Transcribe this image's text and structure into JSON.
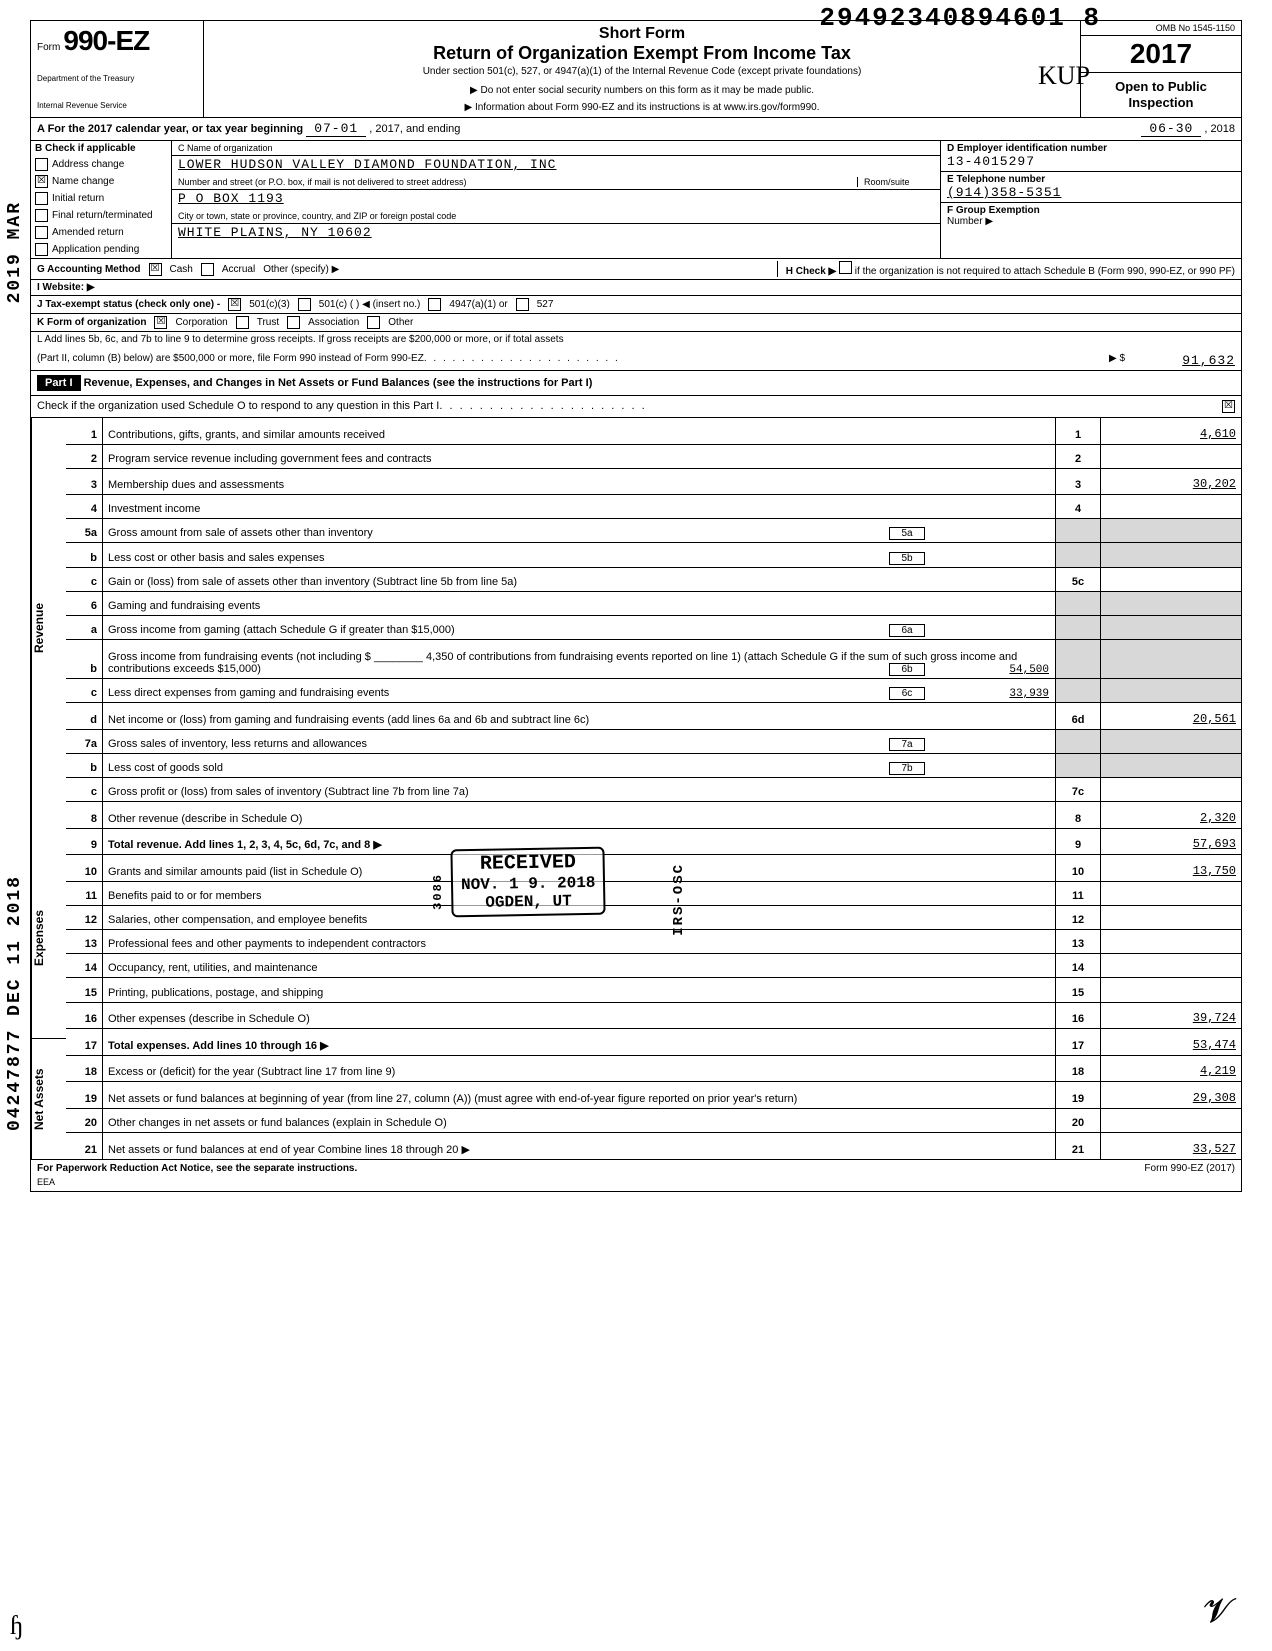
{
  "dln": "29492340894601  8",
  "header": {
    "form_label": "Form",
    "form_number": "990-EZ",
    "short_form": "Short Form",
    "title": "Return of Organization Exempt From Income Tax",
    "under_section": "Under section 501(c), 527, or 4947(a)(1) of the Internal Revenue Code (except private foundations)",
    "do_not_enter": "Do not enter social security numbers on this form as it may be made public.",
    "info_about": "Information about Form 990-EZ and its instructions is at www.irs.gov/form990.",
    "dept1": "Department of the Treasury",
    "dept2": "Internal Revenue Service",
    "omb": "OMB No 1545-1150",
    "year": "2017",
    "open_public": "Open to Public Inspection"
  },
  "row_A": {
    "label": "A  For the 2017 calendar year, or tax year beginning",
    "begin": "07-01",
    "mid": ", 2017, and ending",
    "end": "06-30",
    "end_year": ", 2018"
  },
  "B": {
    "header": "B  Check if applicable",
    "items": [
      {
        "label": "Address change",
        "checked": false
      },
      {
        "label": "Name change",
        "checked": true
      },
      {
        "label": "Initial return",
        "checked": false
      },
      {
        "label": "Final return/terminated",
        "checked": false
      },
      {
        "label": "Amended return",
        "checked": false
      },
      {
        "label": "Application pending",
        "checked": false
      }
    ]
  },
  "C": {
    "name_label": "C  Name of organization",
    "name": "LOWER HUDSON VALLEY DIAMOND FOUNDATION, INC",
    "street_label": "Number and street (or P.O. box, if mail is not delivered to street address)",
    "room_label": "Room/suite",
    "street": "P O BOX 1193",
    "city_label": "City or town, state or province, country, and ZIP or foreign postal code",
    "city": "WHITE PLAINS, NY 10602"
  },
  "D": {
    "label": "D  Employer identification number",
    "value": "13-4015297"
  },
  "E": {
    "label": "E  Telephone number",
    "value": "(914)358-5351"
  },
  "F": {
    "label": "F  Group Exemption",
    "label2": "Number  ▶"
  },
  "G": {
    "label": "G  Accounting Method",
    "cash": "Cash",
    "cash_checked": true,
    "accrual": "Accrual",
    "accrual_checked": false,
    "other": "Other (specify) ▶"
  },
  "H": {
    "label": "H  Check ▶",
    "text": "if the organization is not required to attach Schedule B (Form 990, 990-EZ, or 990 PF)"
  },
  "I": {
    "label": "I   Website:  ▶"
  },
  "J": {
    "label": "J  Tax-exempt status (check only one) -",
    "opts": [
      "501(c)(3)",
      "501(c) (    ) ◀ (insert no.)",
      "4947(a)(1) or",
      "527"
    ],
    "checked_index": 0
  },
  "K": {
    "label": "K  Form of organization",
    "opts": [
      "Corporation",
      "Trust",
      "Association",
      "Other"
    ],
    "checked_index": 0
  },
  "L": {
    "text1": "L  Add lines 5b, 6c, and 7b to line 9 to determine gross receipts. If gross receipts are $200,000 or more, or if total assets",
    "text2": "(Part II, column (B) below) are $500,000 or more, file Form 990 instead of Form 990-EZ",
    "arrow": "▶ $",
    "value": "91,632"
  },
  "partI": {
    "label": "Part I",
    "title": "Revenue, Expenses, and Changes in Net Assets or Fund Balances (see the instructions for Part I)",
    "check_line": "Check if the organization used Schedule O to respond to any question in this Part I",
    "check_val": "☒"
  },
  "sections": {
    "revenue": "Revenue",
    "expenses": "Expenses",
    "netassets": "Net Assets"
  },
  "lines": [
    {
      "n": "1",
      "t": "Contributions, gifts, grants, and similar amounts received",
      "box": "1",
      "amt": "4,610"
    },
    {
      "n": "2",
      "t": "Program service revenue including government fees and contracts",
      "box": "2",
      "amt": ""
    },
    {
      "n": "3",
      "t": "Membership dues and assessments",
      "box": "3",
      "amt": "30,202"
    },
    {
      "n": "4",
      "t": "Investment income",
      "box": "4",
      "amt": ""
    },
    {
      "n": "5a",
      "t": "Gross amount from sale of assets other than inventory",
      "ibox": "5a",
      "iamt": ""
    },
    {
      "n": "b",
      "t": "Less  cost or other basis and sales expenses",
      "ibox": "5b",
      "iamt": ""
    },
    {
      "n": "c",
      "t": "Gain or (loss) from sale of assets other than inventory (Subtract line 5b from line 5a)",
      "box": "5c",
      "amt": ""
    },
    {
      "n": "6",
      "t": "Gaming and fundraising events"
    },
    {
      "n": "a",
      "t": "Gross income from gaming (attach Schedule G if greater than $15,000)",
      "ibox": "6a",
      "iamt": ""
    },
    {
      "n": "b",
      "t": "Gross income from fundraising events (not including   $ ________ 4,350    of contributions from fundraising events reported on line 1) (attach Schedule G if the sum of such gross income and contributions exceeds $15,000)",
      "ibox": "6b",
      "iamt": "54,500"
    },
    {
      "n": "c",
      "t": "Less  direct expenses from gaming and fundraising events",
      "ibox": "6c",
      "iamt": "33,939"
    },
    {
      "n": "d",
      "t": "Net income or (loss) from gaming and fundraising events (add lines 6a and 6b and subtract line 6c)",
      "box": "6d",
      "amt": "20,561"
    },
    {
      "n": "7a",
      "t": "Gross sales of inventory, less returns and allowances",
      "ibox": "7a",
      "iamt": ""
    },
    {
      "n": "b",
      "t": "Less  cost of goods sold",
      "ibox": "7b",
      "iamt": ""
    },
    {
      "n": "c",
      "t": "Gross profit or (loss) from sales of inventory (Subtract line 7b from line 7a)",
      "box": "7c",
      "amt": ""
    },
    {
      "n": "8",
      "t": "Other revenue (describe in Schedule O)",
      "box": "8",
      "amt": "2,320"
    },
    {
      "n": "9",
      "t": "Total revenue. Add lines 1, 2, 3, 4, 5c, 6d, 7c, and 8",
      "box": "9",
      "amt": "57,693",
      "bold": true,
      "arrow": true
    },
    {
      "n": "10",
      "t": "Grants and similar amounts paid (list in Schedule O)",
      "box": "10",
      "amt": "13,750"
    },
    {
      "n": "11",
      "t": "Benefits paid to or for members",
      "box": "11",
      "amt": ""
    },
    {
      "n": "12",
      "t": "Salaries, other compensation, and employee benefits",
      "box": "12",
      "amt": ""
    },
    {
      "n": "13",
      "t": "Professional fees and other payments to independent contractors",
      "box": "13",
      "amt": ""
    },
    {
      "n": "14",
      "t": "Occupancy, rent, utilities, and maintenance",
      "box": "14",
      "amt": ""
    },
    {
      "n": "15",
      "t": "Printing, publications, postage, and shipping",
      "box": "15",
      "amt": ""
    },
    {
      "n": "16",
      "t": "Other expenses (describe in Schedule O)",
      "box": "16",
      "amt": "39,724"
    },
    {
      "n": "17",
      "t": "Total expenses.  Add lines 10 through 16",
      "box": "17",
      "amt": "53,474",
      "bold": true,
      "arrow": true
    },
    {
      "n": "18",
      "t": "Excess or (deficit) for the year (Subtract line 17 from line 9)",
      "box": "18",
      "amt": "4,219"
    },
    {
      "n": "19",
      "t": "Net assets or fund balances at beginning of year (from line 27, column (A)) (must agree with end-of-year figure reported on prior year's return)",
      "box": "19",
      "amt": "29,308"
    },
    {
      "n": "20",
      "t": "Other changes in net assets or fund balances (explain in Schedule O)",
      "box": "20",
      "amt": ""
    },
    {
      "n": "21",
      "t": "Net assets or fund balances at end of year  Combine lines 18 through 20",
      "box": "21",
      "amt": "33,527",
      "arrow": true
    }
  ],
  "footer": {
    "left": "For Paperwork Reduction Act Notice, see the separate instructions.",
    "eea": "EEA",
    "right": "Form 990-EZ (2017)"
  },
  "stamps": {
    "received": "RECEIVED",
    "date": "NOV. 1 9. 2018",
    "ogden": "OGDEN, UT",
    "irs_osc": "IRS-OSC",
    "scan3086": "3086",
    "side_date": "04247877 DEC 11 2018",
    "side_mark": "2019 MAR"
  },
  "style": {
    "amt_underline_color": "#000",
    "mono_font": "Courier New"
  }
}
